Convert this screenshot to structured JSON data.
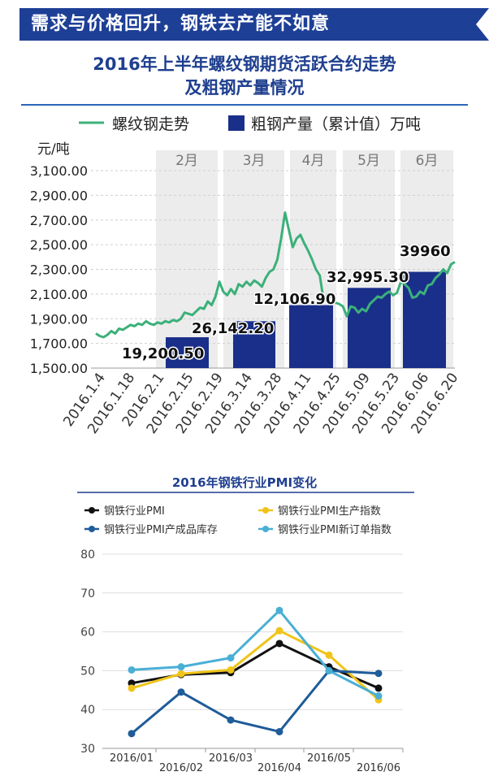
{
  "header": {
    "title": "需求与价格回升，钢铁去产能不如意"
  },
  "chart_data": [
    {
      "type": "bar+line",
      "title_line1": "2016年上半年螺纹钢期货活跃合约走势",
      "title_line2": "及粗钢产量情况",
      "ylabel": "元/吨",
      "ylim": [
        1500,
        3100
      ],
      "yticks": [
        "3,100.00",
        "2,900.00",
        "2,700.00",
        "2,500.00",
        "2,300.00",
        "2,100.00",
        "1,900.00",
        "1,700.00",
        "1,500.00"
      ],
      "x_dates": [
        "2016.1.4",
        "2016.1.18",
        "2016.2.1",
        "2016.2.15",
        "2016.2.19",
        "2016.3.14",
        "2016.3.28",
        "2016.4.11",
        "2016.4.25",
        "2016.5.09",
        "2016.5.23",
        "2016.6.06",
        "2016.6.20"
      ],
      "months": [
        "2月",
        "3月",
        "4月",
        "5月",
        "6月"
      ],
      "legend": {
        "line": "螺纹钢走势",
        "bar": "粗钢产量（累计值）万吨"
      },
      "bars": [
        {
          "month": "2月",
          "value": 19200.5,
          "label": "19,200.50",
          "height_yaxis": 1750
        },
        {
          "month": "3月",
          "value": 26142.2,
          "label": "26,142.20",
          "height_yaxis": 1880
        },
        {
          "month": "4月",
          "value": 12106.9,
          "label": "12,106.90",
          "height_yaxis": 2010
        },
        {
          "month": "5月",
          "value": 32995.3,
          "label": "32,995.30",
          "height_yaxis": 2150
        },
        {
          "month": "6月",
          "value": 39960,
          "label": "39960",
          "height_yaxis": 2280
        }
      ],
      "line_values": [
        1780,
        1760,
        1750,
        1770,
        1800,
        1780,
        1820,
        1810,
        1830,
        1850,
        1840,
        1860,
        1850,
        1880,
        1860,
        1850,
        1870,
        1860,
        1880,
        1870,
        1890,
        1880,
        1900,
        1950,
        1940,
        1930,
        1960,
        1990,
        1980,
        2040,
        2010,
        2080,
        2200,
        2120,
        2090,
        2140,
        2100,
        2180,
        2160,
        2200,
        2170,
        2210,
        2190,
        2160,
        2230,
        2280,
        2300,
        2380,
        2550,
        2760,
        2620,
        2480,
        2550,
        2580,
        2510,
        2450,
        2380,
        2300,
        2250,
        2050,
        2100,
        2080,
        2030,
        2020,
        2000,
        1920,
        2000,
        1990,
        1950,
        1980,
        1960,
        2020,
        2050,
        2080,
        2070,
        2100,
        2120,
        2090,
        2110,
        2200,
        2180,
        2150,
        2070,
        2080,
        2120,
        2100,
        2170,
        2180,
        2230,
        2260,
        2300,
        2270,
        2340,
        2360
      ],
      "colors": {
        "line": "#3cb07a",
        "bar": "#1a2f8a",
        "band": "#ececec"
      }
    },
    {
      "type": "line",
      "title": "2016年钢铁行业PMI变化",
      "ylim": [
        30,
        80
      ],
      "yticks": [
        "80",
        "70",
        "60",
        "50",
        "40",
        "30"
      ],
      "categories": [
        "2016/01",
        "2016/02",
        "2016/03",
        "2016/04",
        "2016/05",
        "2016/06"
      ],
      "series": [
        {
          "name": "钢铁行业PMI",
          "color": "#111111",
          "values": [
            46.8,
            49.0,
            49.5,
            57.0,
            51.0,
            45.5
          ]
        },
        {
          "name": "钢铁行业PMI生产指数",
          "color": "#f0c419",
          "values": [
            45.5,
            49.2,
            50.2,
            60.3,
            54.0,
            42.5
          ]
        },
        {
          "name": "钢铁行业PMI产成品库存",
          "color": "#1f5c99",
          "values": [
            33.8,
            44.5,
            37.3,
            34.3,
            50.0,
            49.3
          ]
        },
        {
          "name": "钢铁行业PMI新订单指数",
          "color": "#4aafd5",
          "values": [
            50.2,
            51.0,
            53.3,
            65.5,
            50.0,
            43.5
          ]
        }
      ]
    }
  ]
}
